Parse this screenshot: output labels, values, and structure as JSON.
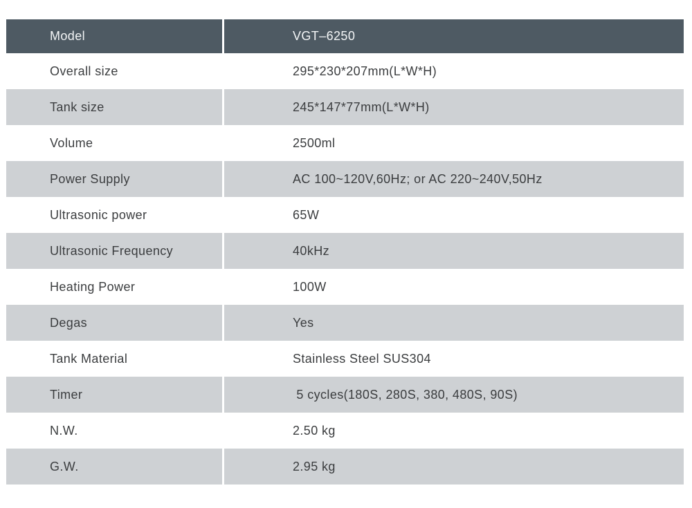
{
  "colors": {
    "header_bg": "#4e5a63",
    "header_text": "#f4f6f7",
    "row_alt_bg": "#ced1d4",
    "row_bg": "#ffffff",
    "body_text": "#3b3d3f"
  },
  "table": {
    "header": {
      "label": "Model",
      "value": "VGT–6250"
    },
    "rows": [
      {
        "label": "Overall size",
        "value": "295*230*207mm(L*W*H)"
      },
      {
        "label": "Tank size",
        "value": "245*147*77mm(L*W*H)"
      },
      {
        "label": "Volume",
        "value": "2500ml"
      },
      {
        "label": "Power Supply",
        "value": "AC 100~120V,60Hz; or AC 220~240V,50Hz"
      },
      {
        "label": "Ultrasonic power",
        "value": "65W"
      },
      {
        "label": "Ultrasonic Frequency",
        "value": "40kHz"
      },
      {
        "label": "Heating Power",
        "value": "100W"
      },
      {
        "label": "Degas",
        "value": "Yes"
      },
      {
        "label": "Tank Material",
        "value": "Stainless Steel SUS304"
      },
      {
        "label": "Timer",
        "value": " 5 cycles(180S, 280S, 380, 480S, 90S)"
      },
      {
        "label": "N.W.",
        "value": "2.50 kg"
      },
      {
        "label": "G.W.",
        "value": "2.95 kg"
      }
    ]
  }
}
